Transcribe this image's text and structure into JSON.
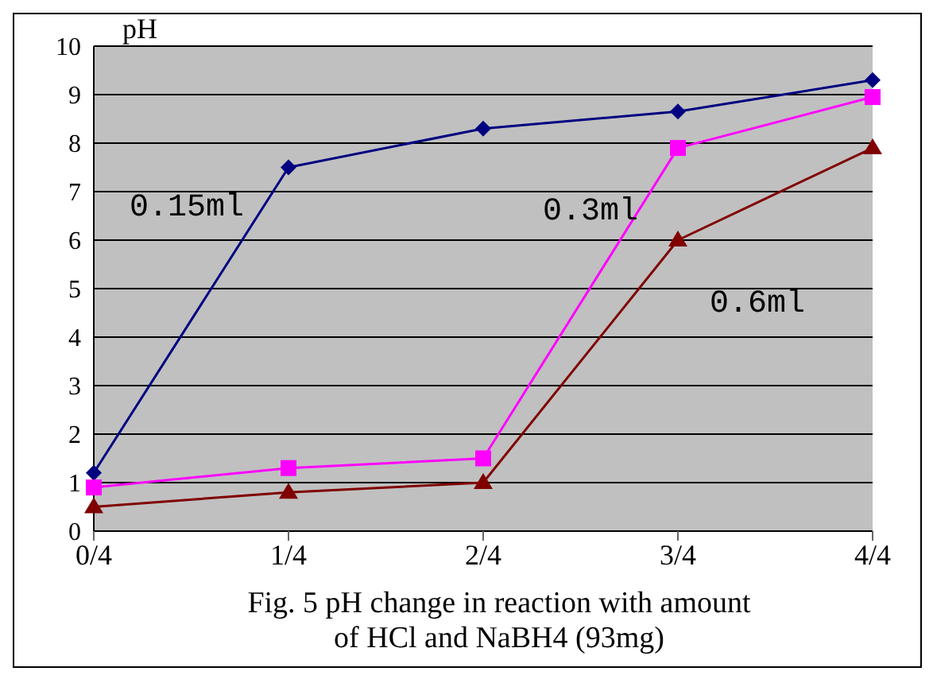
{
  "chart_data": {
    "type": "line",
    "title": "Fig. 5  pH change in reaction with amount\nof  HCl and  NaBH4 (93mg)",
    "ylabel": "pH",
    "categories": [
      "0/4",
      "1/4",
      "2/4",
      "3/4",
      "4/4"
    ],
    "series": [
      {
        "name": "0.15ml",
        "color": "#000080",
        "marker": "diamond",
        "values": [
          1.2,
          7.5,
          8.3,
          8.65,
          9.3
        ]
      },
      {
        "name": "0.3ml",
        "color": "#ff00ff",
        "marker": "square",
        "values": [
          0.9,
          1.3,
          1.5,
          7.9,
          8.95
        ]
      },
      {
        "name": "0.6ml",
        "color": "#800000",
        "marker": "triangle",
        "values": [
          0.5,
          0.8,
          1.0,
          6.0,
          7.9
        ]
      }
    ],
    "ylim": [
      0,
      10
    ],
    "yticks": [
      0,
      1,
      2,
      3,
      4,
      5,
      6,
      7,
      8,
      9,
      10
    ],
    "grid": "y"
  }
}
